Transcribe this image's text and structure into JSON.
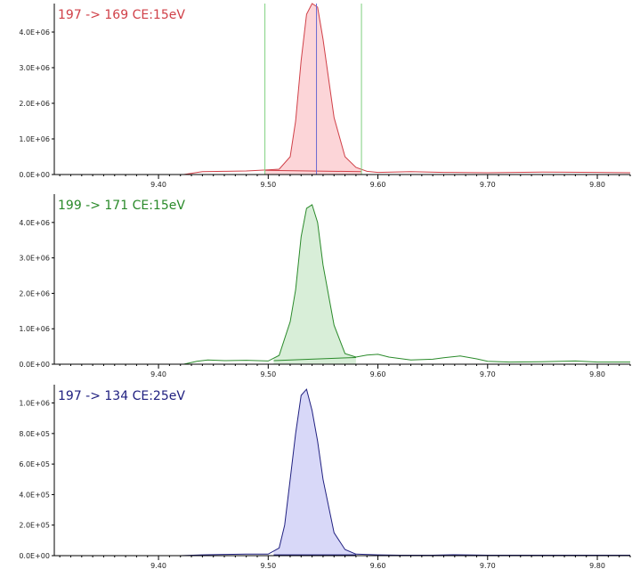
{
  "chart_data": [
    {
      "type": "area",
      "title": "197 -> 169 CE:15eV",
      "color": "#d04048",
      "fill": "#fcd5d8",
      "xlim": [
        9.305,
        9.83
      ],
      "ylim": [
        0,
        4800000
      ],
      "x_ticks": [
        9.4,
        9.5,
        9.6,
        9.7,
        9.8
      ],
      "x_tick_labels": [
        "9.40",
        "9.50",
        "9.60",
        "9.70",
        "9.80"
      ],
      "y_ticks": [
        0,
        1000000,
        2000000,
        3000000,
        4000000
      ],
      "y_tick_labels": [
        "0.0E+00",
        "1.0E+06",
        "2.0E+06",
        "3.0E+06",
        "4.0E+06"
      ],
      "x": [
        9.423,
        9.44,
        9.46,
        9.48,
        9.5,
        9.51,
        9.52,
        9.525,
        9.53,
        9.535,
        9.54,
        9.545,
        9.55,
        9.56,
        9.57,
        9.58,
        9.59,
        9.6,
        9.63,
        9.66,
        9.7,
        9.75,
        9.8,
        9.83
      ],
      "y": [
        0,
        80000,
        90000,
        100000,
        130000,
        150000,
        500000,
        1500000,
        3200000,
        4500000,
        4800000,
        4700000,
        3800000,
        1600000,
        500000,
        200000,
        90000,
        60000,
        80000,
        60000,
        50000,
        70000,
        60000,
        50000
      ],
      "integration_baseline": {
        "x": [
          9.497,
          9.585
        ],
        "y": [
          120000,
          80000
        ]
      },
      "integration_markers": [
        9.497,
        9.585
      ],
      "apex_marker": 9.544
    },
    {
      "type": "area",
      "title": "199 -> 171 CE:15eV",
      "color": "#2a8a2a",
      "fill": "#d8eed8",
      "xlim": [
        9.305,
        9.83
      ],
      "ylim": [
        0,
        4800000
      ],
      "x_ticks": [
        9.4,
        9.5,
        9.6,
        9.7,
        9.8
      ],
      "x_tick_labels": [
        "9.40",
        "9.50",
        "9.60",
        "9.70",
        "9.80"
      ],
      "y_ticks": [
        0,
        1000000,
        2000000,
        3000000,
        4000000
      ],
      "y_tick_labels": [
        "0.0E+00",
        "1.0E+06",
        "2.0E+06",
        "3.0E+06",
        "4.0E+06"
      ],
      "x": [
        9.423,
        9.435,
        9.445,
        9.46,
        9.48,
        9.5,
        9.51,
        9.52,
        9.525,
        9.53,
        9.535,
        9.54,
        9.545,
        9.55,
        9.56,
        9.57,
        9.58,
        9.59,
        9.6,
        9.61,
        9.63,
        9.65,
        9.66,
        9.675,
        9.69,
        9.7,
        9.72,
        9.75,
        9.78,
        9.8,
        9.83
      ],
      "y": [
        0,
        80000,
        120000,
        100000,
        110000,
        90000,
        250000,
        1200000,
        2100000,
        3600000,
        4400000,
        4500000,
        4000000,
        2800000,
        1100000,
        300000,
        200000,
        260000,
        280000,
        200000,
        120000,
        140000,
        180000,
        230000,
        150000,
        80000,
        60000,
        70000,
        90000,
        60000,
        60000
      ],
      "integration_baseline": {
        "x": [
          9.505,
          9.58
        ],
        "y": [
          100000,
          190000
        ]
      }
    },
    {
      "type": "area",
      "title": "197 -> 134 CE:25eV",
      "color": "#202080",
      "fill": "#d8d8f8",
      "xlim": [
        9.305,
        9.83
      ],
      "ylim": [
        0,
        1120000
      ],
      "x_ticks": [
        9.4,
        9.5,
        9.6,
        9.7,
        9.8
      ],
      "x_tick_labels": [
        "9.40",
        "9.50",
        "9.60",
        "9.70",
        "9.80"
      ],
      "y_ticks": [
        0,
        200000,
        400000,
        600000,
        800000,
        1000000
      ],
      "y_tick_labels": [
        "0.0E+00",
        "2.0E+05",
        "4.0E+05",
        "6.0E+05",
        "8.0E+05",
        "1.0E+06"
      ],
      "x": [
        9.42,
        9.44,
        9.46,
        9.48,
        9.5,
        9.51,
        9.515,
        9.52,
        9.525,
        9.53,
        9.535,
        9.54,
        9.545,
        9.55,
        9.56,
        9.57,
        9.58,
        9.6,
        9.62,
        9.65,
        9.67,
        9.7,
        9.75,
        9.8,
        9.83
      ],
      "y": [
        0,
        5000,
        8000,
        10000,
        10000,
        50000,
        200000,
        500000,
        800000,
        1050000,
        1090000,
        950000,
        750000,
        500000,
        150000,
        40000,
        10000,
        5000,
        3000,
        3000,
        6000,
        3000,
        3000,
        3000,
        3000
      ],
      "integration_baseline": {
        "x": [
          9.505,
          9.58
        ],
        "y": [
          5000,
          5000
        ]
      }
    }
  ]
}
